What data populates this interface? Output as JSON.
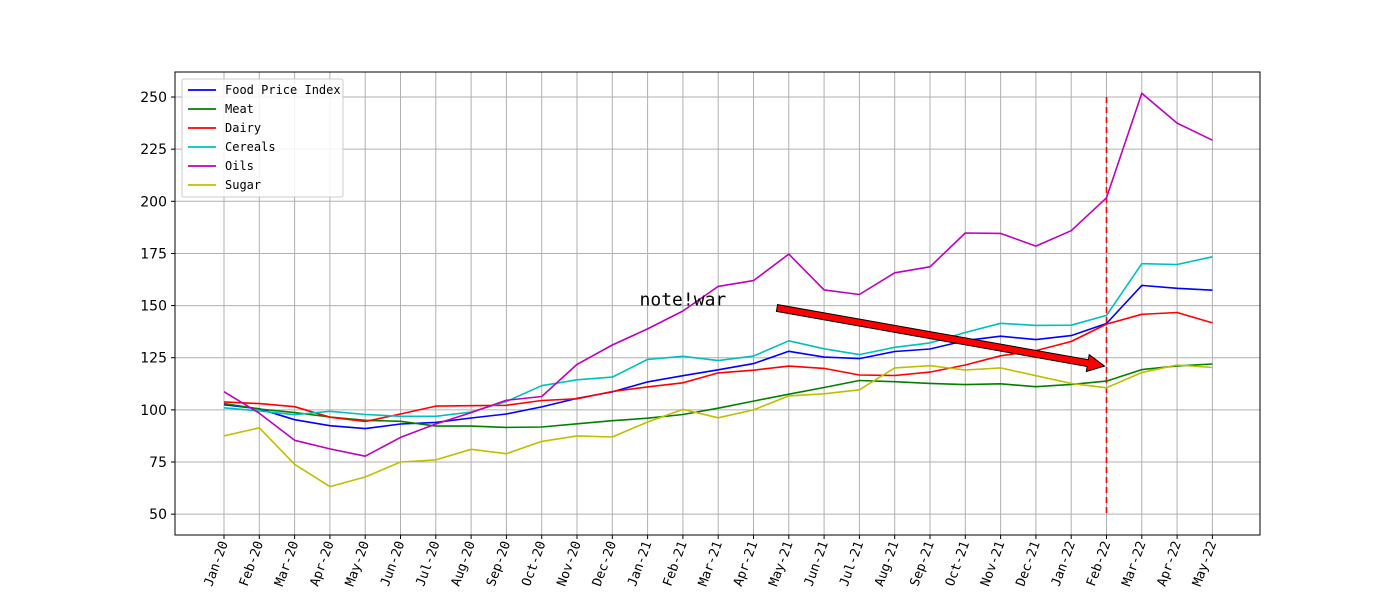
{
  "chart_data": {
    "type": "line",
    "title": "",
    "xlabel": "",
    "ylabel": "",
    "categories": [
      "Jan-20",
      "Feb-20",
      "Mar-20",
      "Apr-20",
      "May-20",
      "Jun-20",
      "Jul-20",
      "Aug-20",
      "Sep-20",
      "Oct-20",
      "Nov-20",
      "Dec-20",
      "Jan-21",
      "Feb-21",
      "Mar-21",
      "Apr-21",
      "May-21",
      "Jun-21",
      "Jul-21",
      "Aug-21",
      "Sep-21",
      "Oct-21",
      "Nov-21",
      "Dec-21",
      "Jan-22",
      "Feb-22",
      "Mar-22",
      "Apr-22",
      "May-22"
    ],
    "ylim": [
      40,
      262
    ],
    "yticks": [
      50,
      75,
      100,
      125,
      150,
      175,
      200,
      225,
      250
    ],
    "grid": true,
    "legend_position": "top-left",
    "series": [
      {
        "name": "Food Price Index",
        "color": "#0000ff",
        "values": [
          102.5,
          100.5,
          95.3,
          92.4,
          91.0,
          93.2,
          94.0,
          96.1,
          98.0,
          101.4,
          105.5,
          108.6,
          113.4,
          116.4,
          119.2,
          122.2,
          128.1,
          125.3,
          124.6,
          128.0,
          129.2,
          133.2,
          135.3,
          133.7,
          135.6,
          141.4,
          159.7,
          158.3,
          157.4
        ]
      },
      {
        "name": "Meat",
        "color": "#008000",
        "values": [
          103.0,
          100.4,
          98.7,
          96.6,
          95.0,
          94.5,
          92.2,
          92.2,
          91.6,
          91.8,
          93.3,
          94.8,
          96.0,
          97.8,
          100.8,
          104.2,
          107.5,
          110.7,
          114.1,
          113.5,
          112.7,
          112.1,
          112.5,
          111.1,
          112.2,
          113.8,
          119.3,
          121.1,
          122.0
        ]
      },
      {
        "name": "Dairy",
        "color": "#ff0000",
        "values": [
          103.8,
          103.0,
          101.5,
          96.5,
          94.4,
          98.0,
          101.8,
          102.0,
          102.2,
          104.5,
          105.3,
          108.8,
          111.0,
          113.0,
          117.7,
          119.0,
          121.0,
          119.9,
          116.7,
          116.5,
          118.1,
          121.5,
          125.9,
          128.4,
          132.8,
          141.1,
          145.8,
          146.7,
          141.7
        ]
      },
      {
        "name": "Cereals",
        "color": "#00bfbf",
        "values": [
          101.0,
          99.5,
          97.7,
          99.3,
          97.8,
          96.9,
          96.9,
          99.0,
          104.0,
          111.6,
          114.4,
          115.7,
          124.2,
          125.7,
          123.6,
          125.8,
          133.1,
          129.3,
          126.5,
          130.0,
          132.1,
          137.1,
          141.5,
          140.5,
          140.6,
          145.3,
          170.1,
          169.7,
          173.4
        ]
      },
      {
        "name": "Oils",
        "color": "#bf00bf",
        "values": [
          108.7,
          98.4,
          85.4,
          81.3,
          77.8,
          86.8,
          93.2,
          98.7,
          104.6,
          106.4,
          121.8,
          131.1,
          138.8,
          147.4,
          159.2,
          162.0,
          174.7,
          157.5,
          155.3,
          165.7,
          168.6,
          184.8,
          184.6,
          178.5,
          185.9,
          201.7,
          251.8,
          237.5,
          229.3
        ]
      },
      {
        "name": "Sugar",
        "color": "#bfbf00",
        "values": [
          87.5,
          91.4,
          73.9,
          63.2,
          67.8,
          75.0,
          76.0,
          81.1,
          79.0,
          84.9,
          87.5,
          87.0,
          94.2,
          100.2,
          96.2,
          100.0,
          106.7,
          107.7,
          109.6,
          120.1,
          121.2,
          119.1,
          120.1,
          116.4,
          112.7,
          110.6,
          117.9,
          121.5,
          120.3
        ]
      }
    ],
    "vline": {
      "category": "Feb-22",
      "from": 50,
      "to": 250,
      "color": "#ff0000",
      "style": "dashed"
    },
    "annotation": {
      "text": "note!war",
      "text_at": [
        "Feb-21",
        150
      ],
      "arrow_to": [
        "Feb-22",
        121
      ],
      "arrow_color": "#ff0000"
    }
  }
}
